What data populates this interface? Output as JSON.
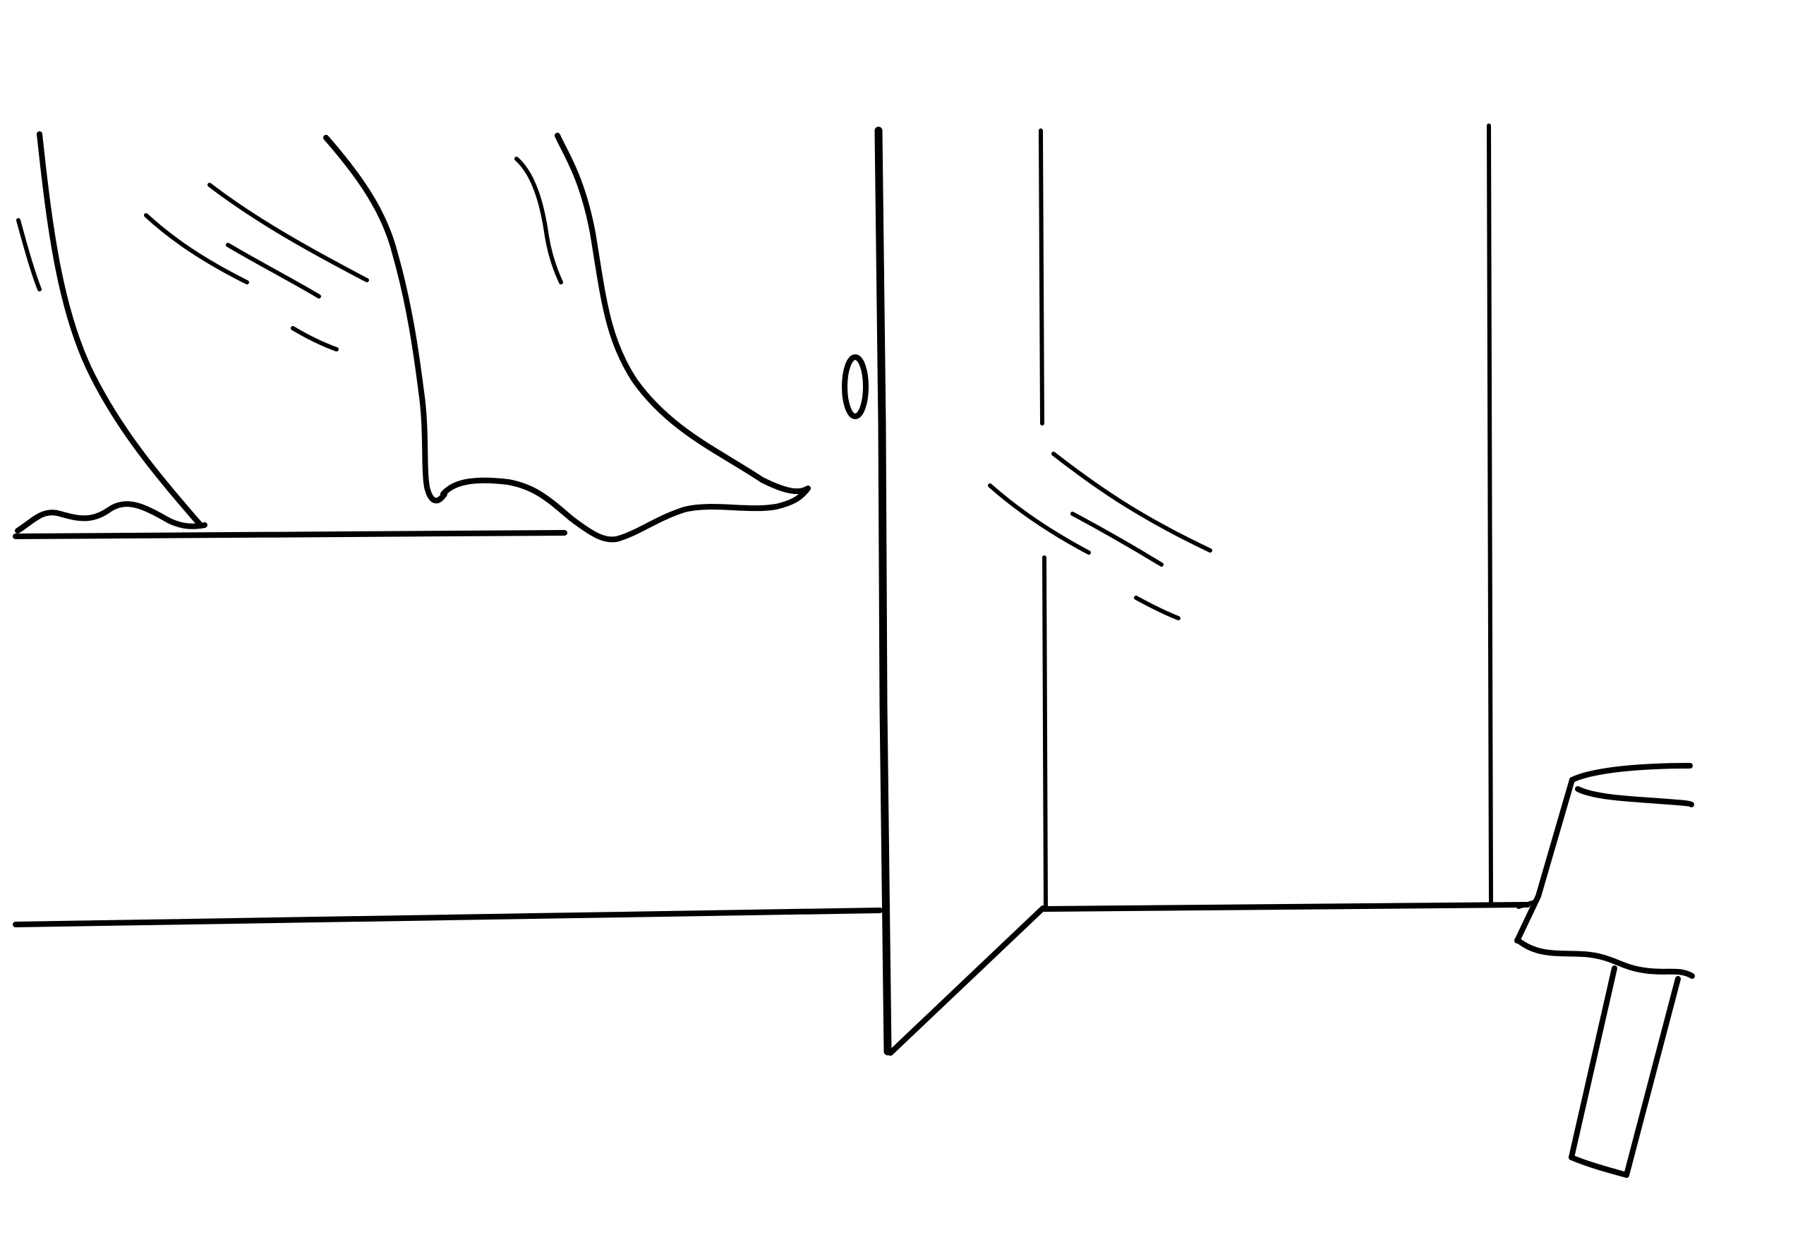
{
  "drawing": {
    "style": "black line drawing on white",
    "ink_color": "#000000",
    "paper_color": "#ffffff",
    "elements": [
      "curtains",
      "window-sill",
      "glass-sheen",
      "baseboard",
      "glass-door",
      "door-handle",
      "door-frame",
      "floor-edge",
      "chair-or-object"
    ]
  }
}
